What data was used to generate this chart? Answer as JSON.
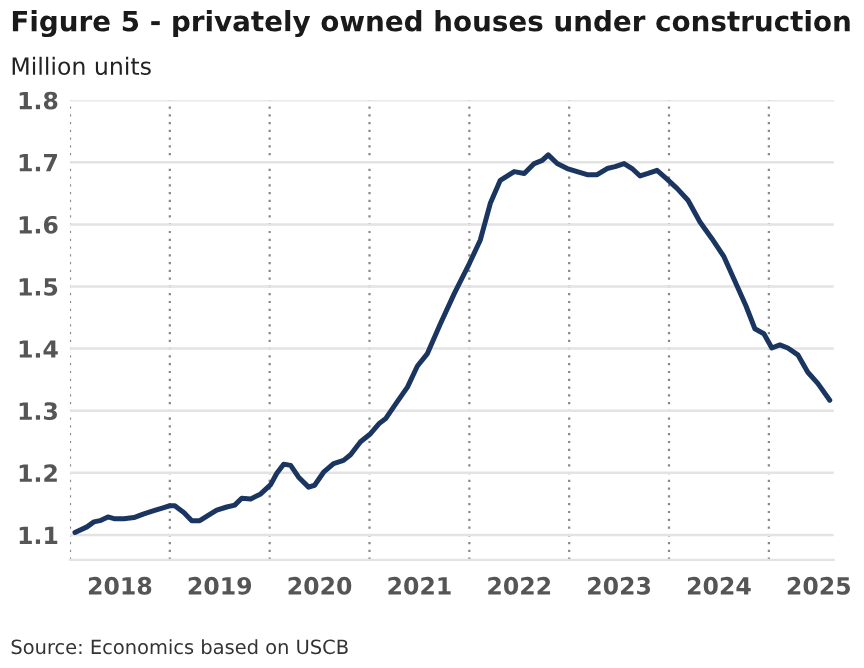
{
  "chart_data": {
    "type": "line",
    "title": "Figure 5 - privately owned houses under construction",
    "ylabel": "Million units",
    "annotations": [
      "Source: Economics based on USCB"
    ],
    "x": [
      2018.05,
      2018.17,
      2018.24,
      2018.3,
      2018.38,
      2018.45,
      2018.54,
      2018.64,
      2018.74,
      2018.84,
      2018.94,
      2019.0,
      2019.05,
      2019.14,
      2019.22,
      2019.3,
      2019.38,
      2019.47,
      2019.57,
      2019.65,
      2019.72,
      2019.81,
      2019.91,
      2020.01,
      2020.07,
      2020.14,
      2020.21,
      2020.29,
      2020.39,
      2020.45,
      2020.54,
      2020.64,
      2020.74,
      2020.81,
      2020.91,
      2021.01,
      2021.1,
      2021.16,
      2021.28,
      2021.38,
      2021.48,
      2021.58,
      2021.71,
      2021.85,
      2022.0,
      2022.11,
      2022.21,
      2022.31,
      2022.45,
      2022.55,
      2022.65,
      2022.73,
      2022.79,
      2022.88,
      2022.98,
      2023.08,
      2023.18,
      2023.28,
      2023.38,
      2023.46,
      2023.55,
      2023.63,
      2023.71,
      2023.79,
      2023.88,
      2023.98,
      2024.08,
      2024.19,
      2024.31,
      2024.43,
      2024.55,
      2024.65,
      2024.77,
      2024.86,
      2024.95,
      2025.03,
      2025.11,
      2025.19,
      2025.29,
      2025.39,
      2025.49,
      2025.61
    ],
    "series": [
      {
        "color": "#1a3560",
        "values": [
          1.104,
          1.113,
          1.121,
          1.123,
          1.129,
          1.126,
          1.126,
          1.128,
          1.134,
          1.139,
          1.144,
          1.147,
          1.147,
          1.136,
          1.123,
          1.123,
          1.131,
          1.14,
          1.145,
          1.148,
          1.159,
          1.158,
          1.166,
          1.181,
          1.199,
          1.214,
          1.212,
          1.193,
          1.177,
          1.18,
          1.201,
          1.215,
          1.22,
          1.229,
          1.25,
          1.263,
          1.28,
          1.287,
          1.315,
          1.338,
          1.372,
          1.392,
          1.44,
          1.489,
          1.537,
          1.575,
          1.634,
          1.671,
          1.685,
          1.682,
          1.698,
          1.703,
          1.712,
          1.698,
          1.69,
          1.685,
          1.68,
          1.68,
          1.69,
          1.693,
          1.698,
          1.69,
          1.678,
          1.682,
          1.687,
          1.673,
          1.658,
          1.639,
          1.604,
          1.577,
          1.548,
          1.512,
          1.469,
          1.432,
          1.424,
          1.401,
          1.406,
          1.401,
          1.39,
          1.362,
          1.344,
          1.317
        ]
      }
    ],
    "xlim": [
      2018,
      2025.65
    ],
    "xticks": [
      {
        "value": 2018,
        "label": null
      },
      {
        "value": 2018.5,
        "label": "2018"
      },
      {
        "value": 2019,
        "label": null
      },
      {
        "value": 2019.5,
        "label": "2019"
      },
      {
        "value": 2020,
        "label": null
      },
      {
        "value": 2020.5,
        "label": "2020"
      },
      {
        "value": 2021,
        "label": null
      },
      {
        "value": 2021.5,
        "label": "2021"
      },
      {
        "value": 2022,
        "label": null
      },
      {
        "value": 2022.5,
        "label": "2022"
      },
      {
        "value": 2023,
        "label": null
      },
      {
        "value": 2023.5,
        "label": "2023"
      },
      {
        "value": 2024,
        "label": null
      },
      {
        "value": 2024.5,
        "label": "2024"
      },
      {
        "value": 2025,
        "label": null
      },
      {
        "value": 2025.5,
        "label": "2025"
      }
    ],
    "ylim": [
      1.06,
      1.8
    ],
    "yticks": [
      1.1,
      1.2,
      1.3,
      1.4,
      1.5,
      1.6,
      1.7,
      1.8
    ],
    "grid": true,
    "line_style": "solid",
    "marker": "none"
  }
}
